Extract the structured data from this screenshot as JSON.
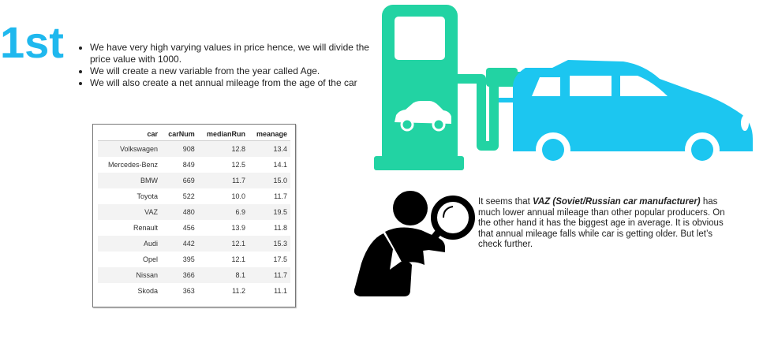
{
  "heading": "1st",
  "bullets": [
    "We have very high varying values in price hence, we will divide the price value with 1000.",
    "We will create a new variable from the year called Age.",
    "We will also create a net annual mileage from the age of the car"
  ],
  "table": {
    "columns": [
      "car",
      "carNum",
      "medianRun",
      "meanage"
    ],
    "rows": [
      [
        "Volkswagen",
        "908",
        "12.8",
        "13.4"
      ],
      [
        "Mercedes-Benz",
        "849",
        "12.5",
        "14.1"
      ],
      [
        "BMW",
        "669",
        "11.7",
        "15.0"
      ],
      [
        "Toyota",
        "522",
        "10.0",
        "11.7"
      ],
      [
        "VAZ",
        "480",
        "6.9",
        "19.5"
      ],
      [
        "Renault",
        "456",
        "13.9",
        "11.8"
      ],
      [
        "Audi",
        "442",
        "12.1",
        "15.3"
      ],
      [
        "Opel",
        "395",
        "12.1",
        "17.5"
      ],
      [
        "Nissan",
        "366",
        "8.1",
        "11.7"
      ],
      [
        "Skoda",
        "363",
        "11.2",
        "11.1"
      ]
    ]
  },
  "conclusion": {
    "lead": "It seems that ",
    "emphasis": "VAZ (Soviet/Russian car manufacturer)",
    "rest": " has much lower annual mileage than other popular producers. On the other hand it has the biggest age in average. It is obvious that annual mileage falls while car is getting older. But let’s check further."
  },
  "colors": {
    "heading": "#1fb8ee",
    "pump": "#22d3a3",
    "car": "#1cc6f0",
    "inspector": "#000000"
  },
  "icons": {
    "pump": "ev-charging-pump-icon",
    "car": "electric-car-icon",
    "inspector": "person-magnifier-icon"
  }
}
